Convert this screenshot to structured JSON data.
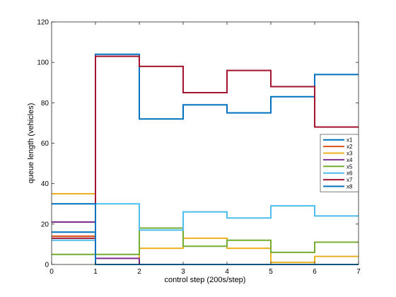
{
  "chart_data": {
    "type": "line",
    "step": true,
    "title": "",
    "xlabel": "control step (200s/step)",
    "ylabel": "queue length (vehicles)",
    "xlim": [
      0,
      7
    ],
    "ylim": [
      0,
      120
    ],
    "xticks": [
      0,
      1,
      2,
      3,
      4,
      5,
      6,
      7
    ],
    "yticks": [
      0,
      20,
      40,
      60,
      80,
      100,
      120
    ],
    "grid": false,
    "legend_position": "right",
    "x": [
      0,
      1,
      2,
      3,
      4,
      5,
      6,
      7
    ],
    "series": [
      {
        "name": "x1",
        "color": "#0072BD",
        "values": [
          16,
          104,
          72,
          79,
          75,
          83,
          94,
          94
        ]
      },
      {
        "name": "x2",
        "color": "#D95319",
        "values": [
          14,
          0,
          0,
          0,
          0,
          0,
          0,
          0
        ]
      },
      {
        "name": "x3",
        "color": "#EDB120",
        "values": [
          35,
          0,
          8,
          13,
          8,
          1,
          4,
          4
        ]
      },
      {
        "name": "x4",
        "color": "#7E2F8E",
        "values": [
          21,
          3,
          0,
          0,
          0,
          0,
          0,
          0
        ]
      },
      {
        "name": "x5",
        "color": "#77AC30",
        "values": [
          5,
          5,
          18,
          9,
          12,
          6,
          11,
          11
        ]
      },
      {
        "name": "x6",
        "color": "#4DBEEE",
        "values": [
          12,
          30,
          17,
          26,
          23,
          29,
          24,
          24
        ]
      },
      {
        "name": "x7",
        "color": "#A2142F",
        "values": [
          13,
          103,
          98,
          85,
          96,
          88,
          68,
          68
        ]
      },
      {
        "name": "x8",
        "color": "#0072BD",
        "values": [
          30,
          0,
          0,
          0,
          0,
          0,
          0,
          0
        ]
      }
    ]
  }
}
